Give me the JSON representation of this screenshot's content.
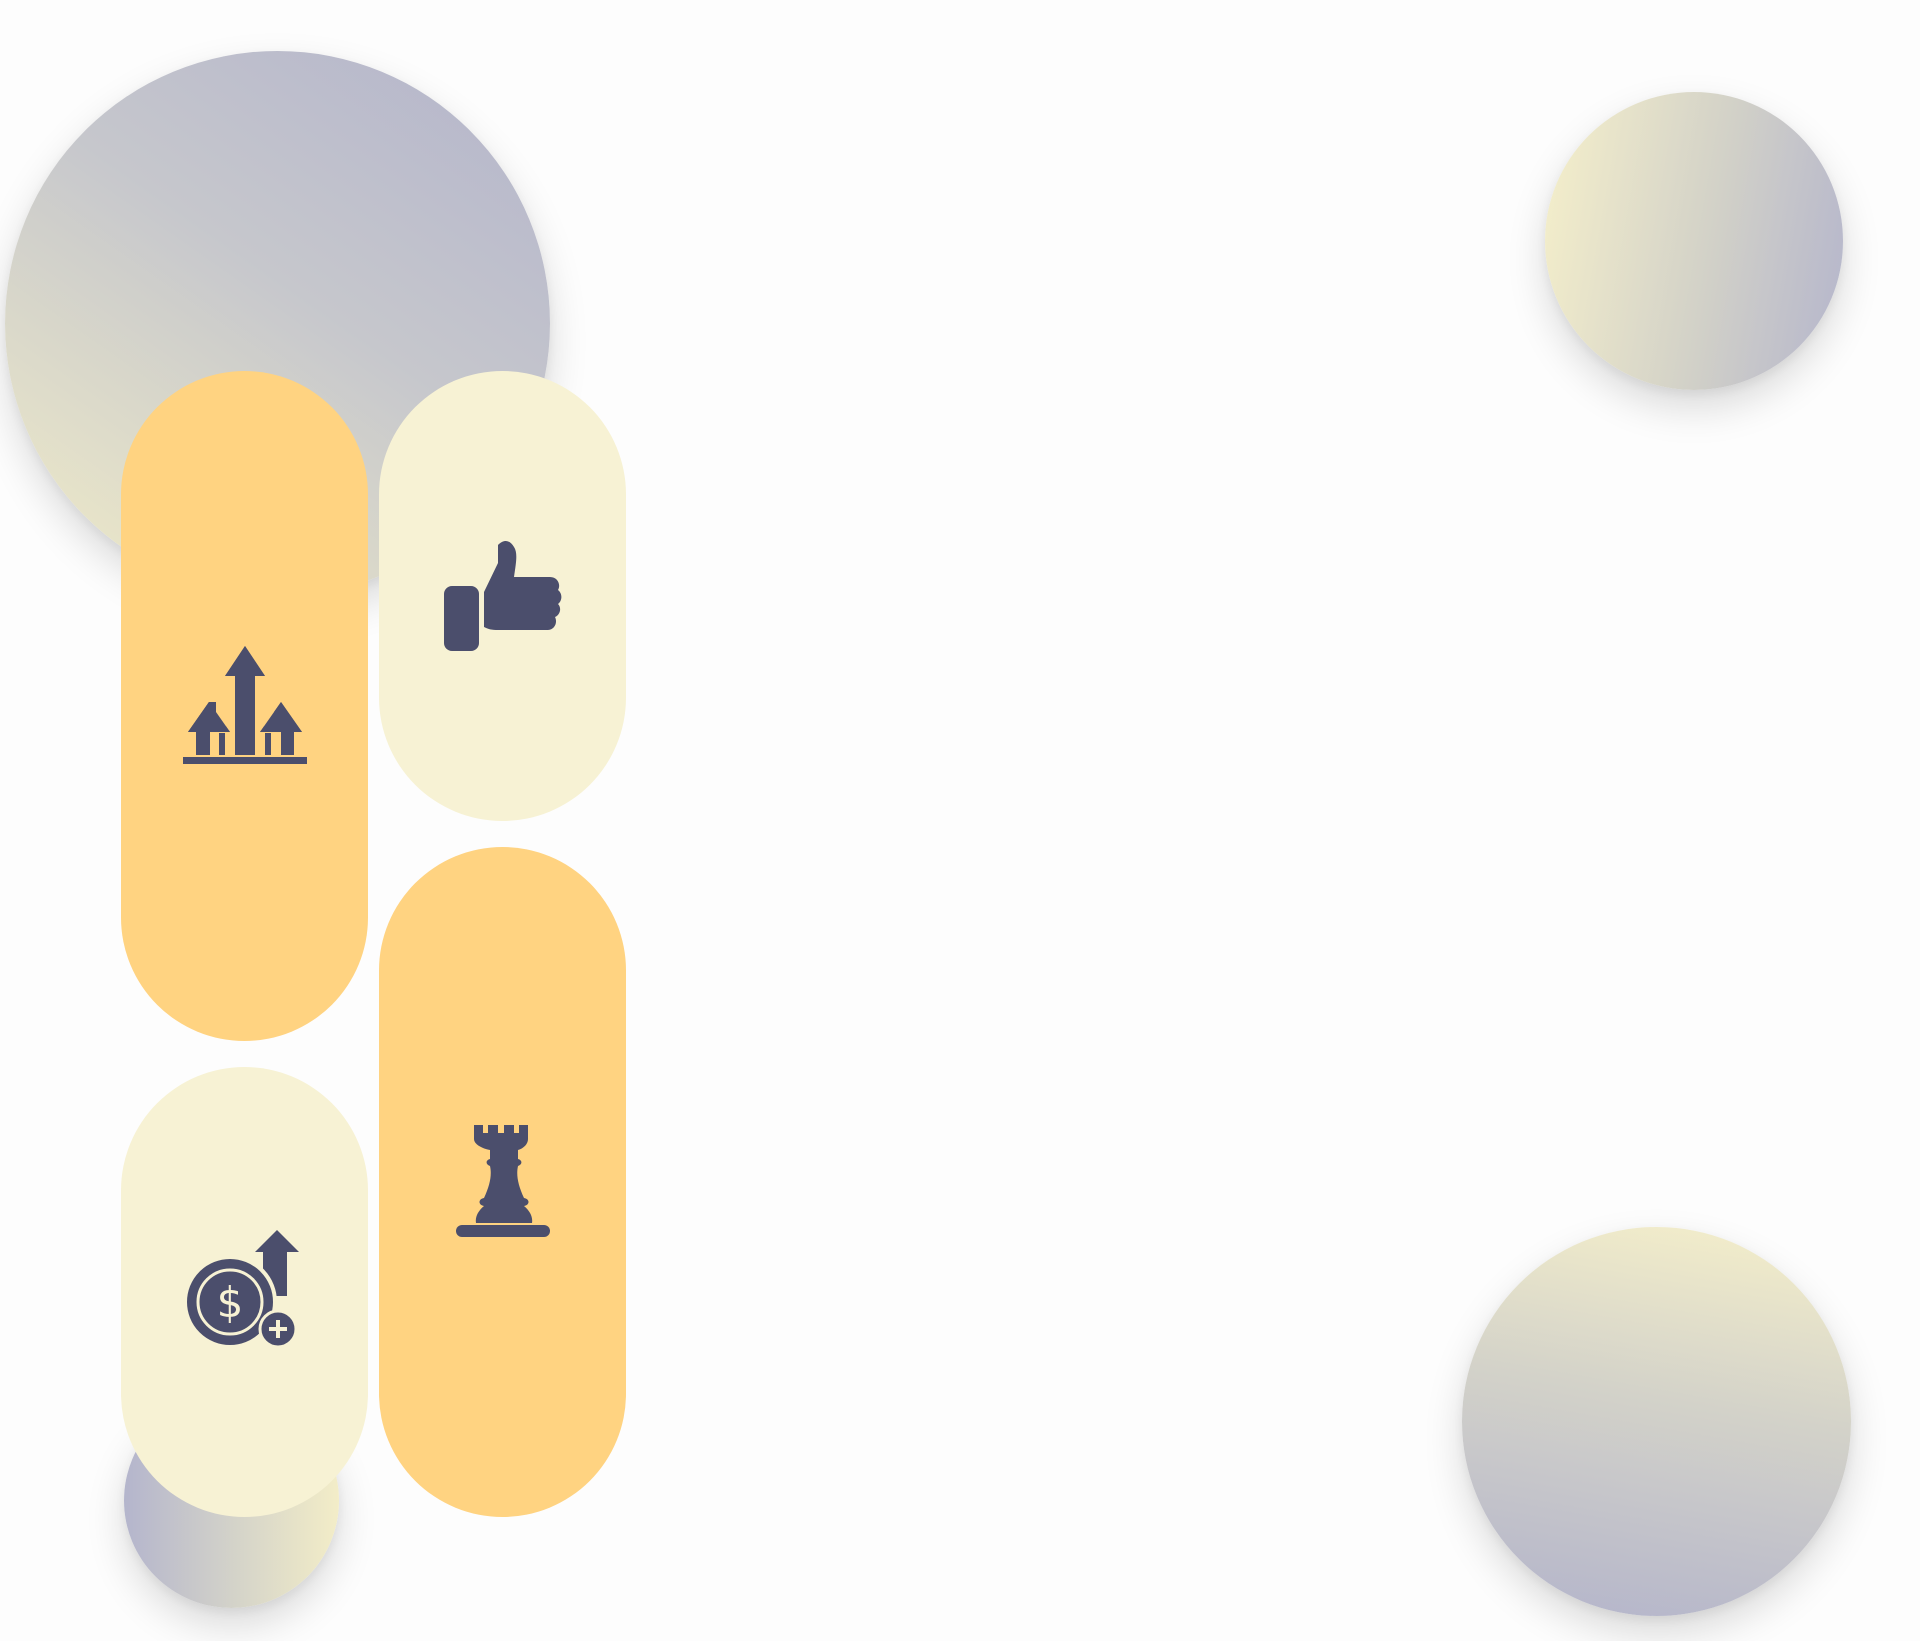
{
  "colors": {
    "background": "#fdfdfd",
    "pill_orange": "#ffd381",
    "pill_cream": "#f7f2d4",
    "icon": "#4b4e6c",
    "circle_lavender": "#b3b4cb",
    "circle_cream": "#f6f0cb"
  },
  "pills": [
    {
      "id": "growth",
      "color": "orange",
      "icon": "growth-arrows-icon"
    },
    {
      "id": "like",
      "color": "cream",
      "icon": "thumbs-up-icon"
    },
    {
      "id": "strategy",
      "color": "orange",
      "icon": "chess-rook-icon"
    },
    {
      "id": "finance",
      "color": "cream",
      "icon": "dollar-coin-up-icon"
    }
  ],
  "decorations": [
    {
      "name": "gradient-circle-large",
      "colors": [
        "lavender",
        "cream"
      ]
    },
    {
      "name": "gradient-circle-top-right",
      "colors": [
        "cream",
        "lavender"
      ]
    },
    {
      "name": "gradient-circle-bottom-right",
      "colors": [
        "cream",
        "lavender"
      ]
    },
    {
      "name": "gradient-circle-small-bottom",
      "colors": [
        "lavender",
        "cream"
      ]
    }
  ]
}
